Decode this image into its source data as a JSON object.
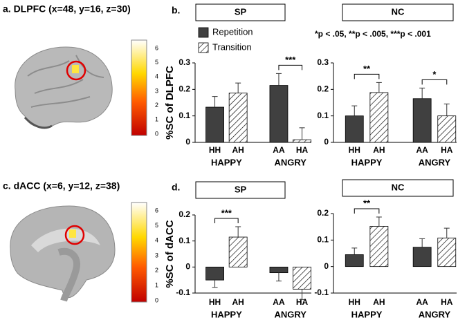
{
  "panels": {
    "a": "a. DLPFC (x=48, y=16, z=30)",
    "b": "b.",
    "c": "c. dACC (x=6, y=12, z=38)",
    "d": "d."
  },
  "note": "*p < .05, **p < .005, ***p < .001",
  "colorbars": [
    {
      "ticks": [
        0,
        1,
        2,
        3,
        4,
        5,
        6
      ]
    },
    {
      "ticks": [
        0,
        1,
        2,
        3,
        4,
        5,
        6
      ]
    }
  ],
  "chart_data": [
    {
      "type": "bar",
      "title": "SP",
      "ylabel": "%SC of DLPFC",
      "legend": true,
      "categories": [
        "HH",
        "AH",
        "AA",
        "HA"
      ],
      "groups": [
        "HAPPY",
        "ANGRY"
      ],
      "series": [
        {
          "name": "Repetition",
          "color": "#404040",
          "hatch": false,
          "values": [
            0.133,
            null,
            0.215,
            null
          ],
          "errors": [
            0.04,
            null,
            0.045,
            null
          ]
        },
        {
          "name": "Transition",
          "color": "#ffffff",
          "hatch": true,
          "values": [
            null,
            0.186,
            null,
            0.01
          ],
          "errors": [
            null,
            0.038,
            null,
            0.045
          ]
        }
      ],
      "annotations": [
        {
          "label": "***",
          "between": [
            2,
            3
          ]
        }
      ],
      "ylim": [
        0,
        0.3
      ],
      "yticks": [
        0,
        0.1,
        0.2,
        0.3
      ]
    },
    {
      "type": "bar",
      "title": "NC",
      "legend": false,
      "categories": [
        "HH",
        "AH",
        "AA",
        "HA"
      ],
      "groups": [
        "HAPPY",
        "ANGRY"
      ],
      "series": [
        {
          "name": "Repetition",
          "color": "#404040",
          "hatch": false,
          "values": [
            0.1,
            null,
            0.165,
            null
          ],
          "errors": [
            0.038,
            null,
            0.04,
            null
          ]
        },
        {
          "name": "Transition",
          "color": "#ffffff",
          "hatch": true,
          "values": [
            null,
            0.188,
            null,
            0.1
          ],
          "errors": [
            null,
            0.038,
            null,
            0.045
          ]
        }
      ],
      "annotations": [
        {
          "label": "**",
          "between": [
            0,
            1
          ]
        },
        {
          "label": "*",
          "between": [
            2,
            3
          ]
        }
      ],
      "ylim": [
        0,
        0.3
      ],
      "yticks": [
        0,
        0.1,
        0.2,
        0.3
      ]
    },
    {
      "type": "bar",
      "title": "SP",
      "ylabel": "%SC of dACC",
      "legend": false,
      "categories": [
        "HH",
        "AH",
        "AA",
        "HA"
      ],
      "groups": [
        "HAPPY",
        "ANGRY"
      ],
      "series": [
        {
          "name": "Repetition",
          "color": "#404040",
          "hatch": false,
          "values": [
            -0.05,
            null,
            -0.022,
            null
          ],
          "errors": [
            0.028,
            null,
            0.032,
            null
          ]
        },
        {
          "name": "Transition",
          "color": "#ffffff",
          "hatch": true,
          "values": [
            null,
            0.115,
            null,
            -0.085
          ],
          "errors": [
            null,
            0.04,
            null,
            0.04
          ]
        }
      ],
      "annotations": [
        {
          "label": "***",
          "between": [
            0,
            1
          ]
        }
      ],
      "ylim": [
        -0.1,
        0.2
      ],
      "yticks": [
        -0.1,
        0,
        0.1,
        0.2
      ]
    },
    {
      "type": "bar",
      "title": "NC",
      "legend": false,
      "categories": [
        "HH",
        "AH",
        "AA",
        "HA"
      ],
      "groups": [
        "HAPPY",
        "ANGRY"
      ],
      "series": [
        {
          "name": "Repetition",
          "color": "#404040",
          "hatch": false,
          "values": [
            0.045,
            null,
            0.073,
            null
          ],
          "errors": [
            0.025,
            null,
            0.032,
            null
          ]
        },
        {
          "name": "Transition",
          "color": "#ffffff",
          "hatch": true,
          "values": [
            null,
            0.152,
            null,
            0.108
          ],
          "errors": [
            null,
            0.035,
            null,
            0.037
          ]
        }
      ],
      "annotations": [
        {
          "label": "**",
          "between": [
            0,
            1
          ]
        }
      ],
      "ylim": [
        -0.1,
        0.2
      ],
      "yticks": [
        -0.1,
        0,
        0.1,
        0.2
      ]
    }
  ]
}
